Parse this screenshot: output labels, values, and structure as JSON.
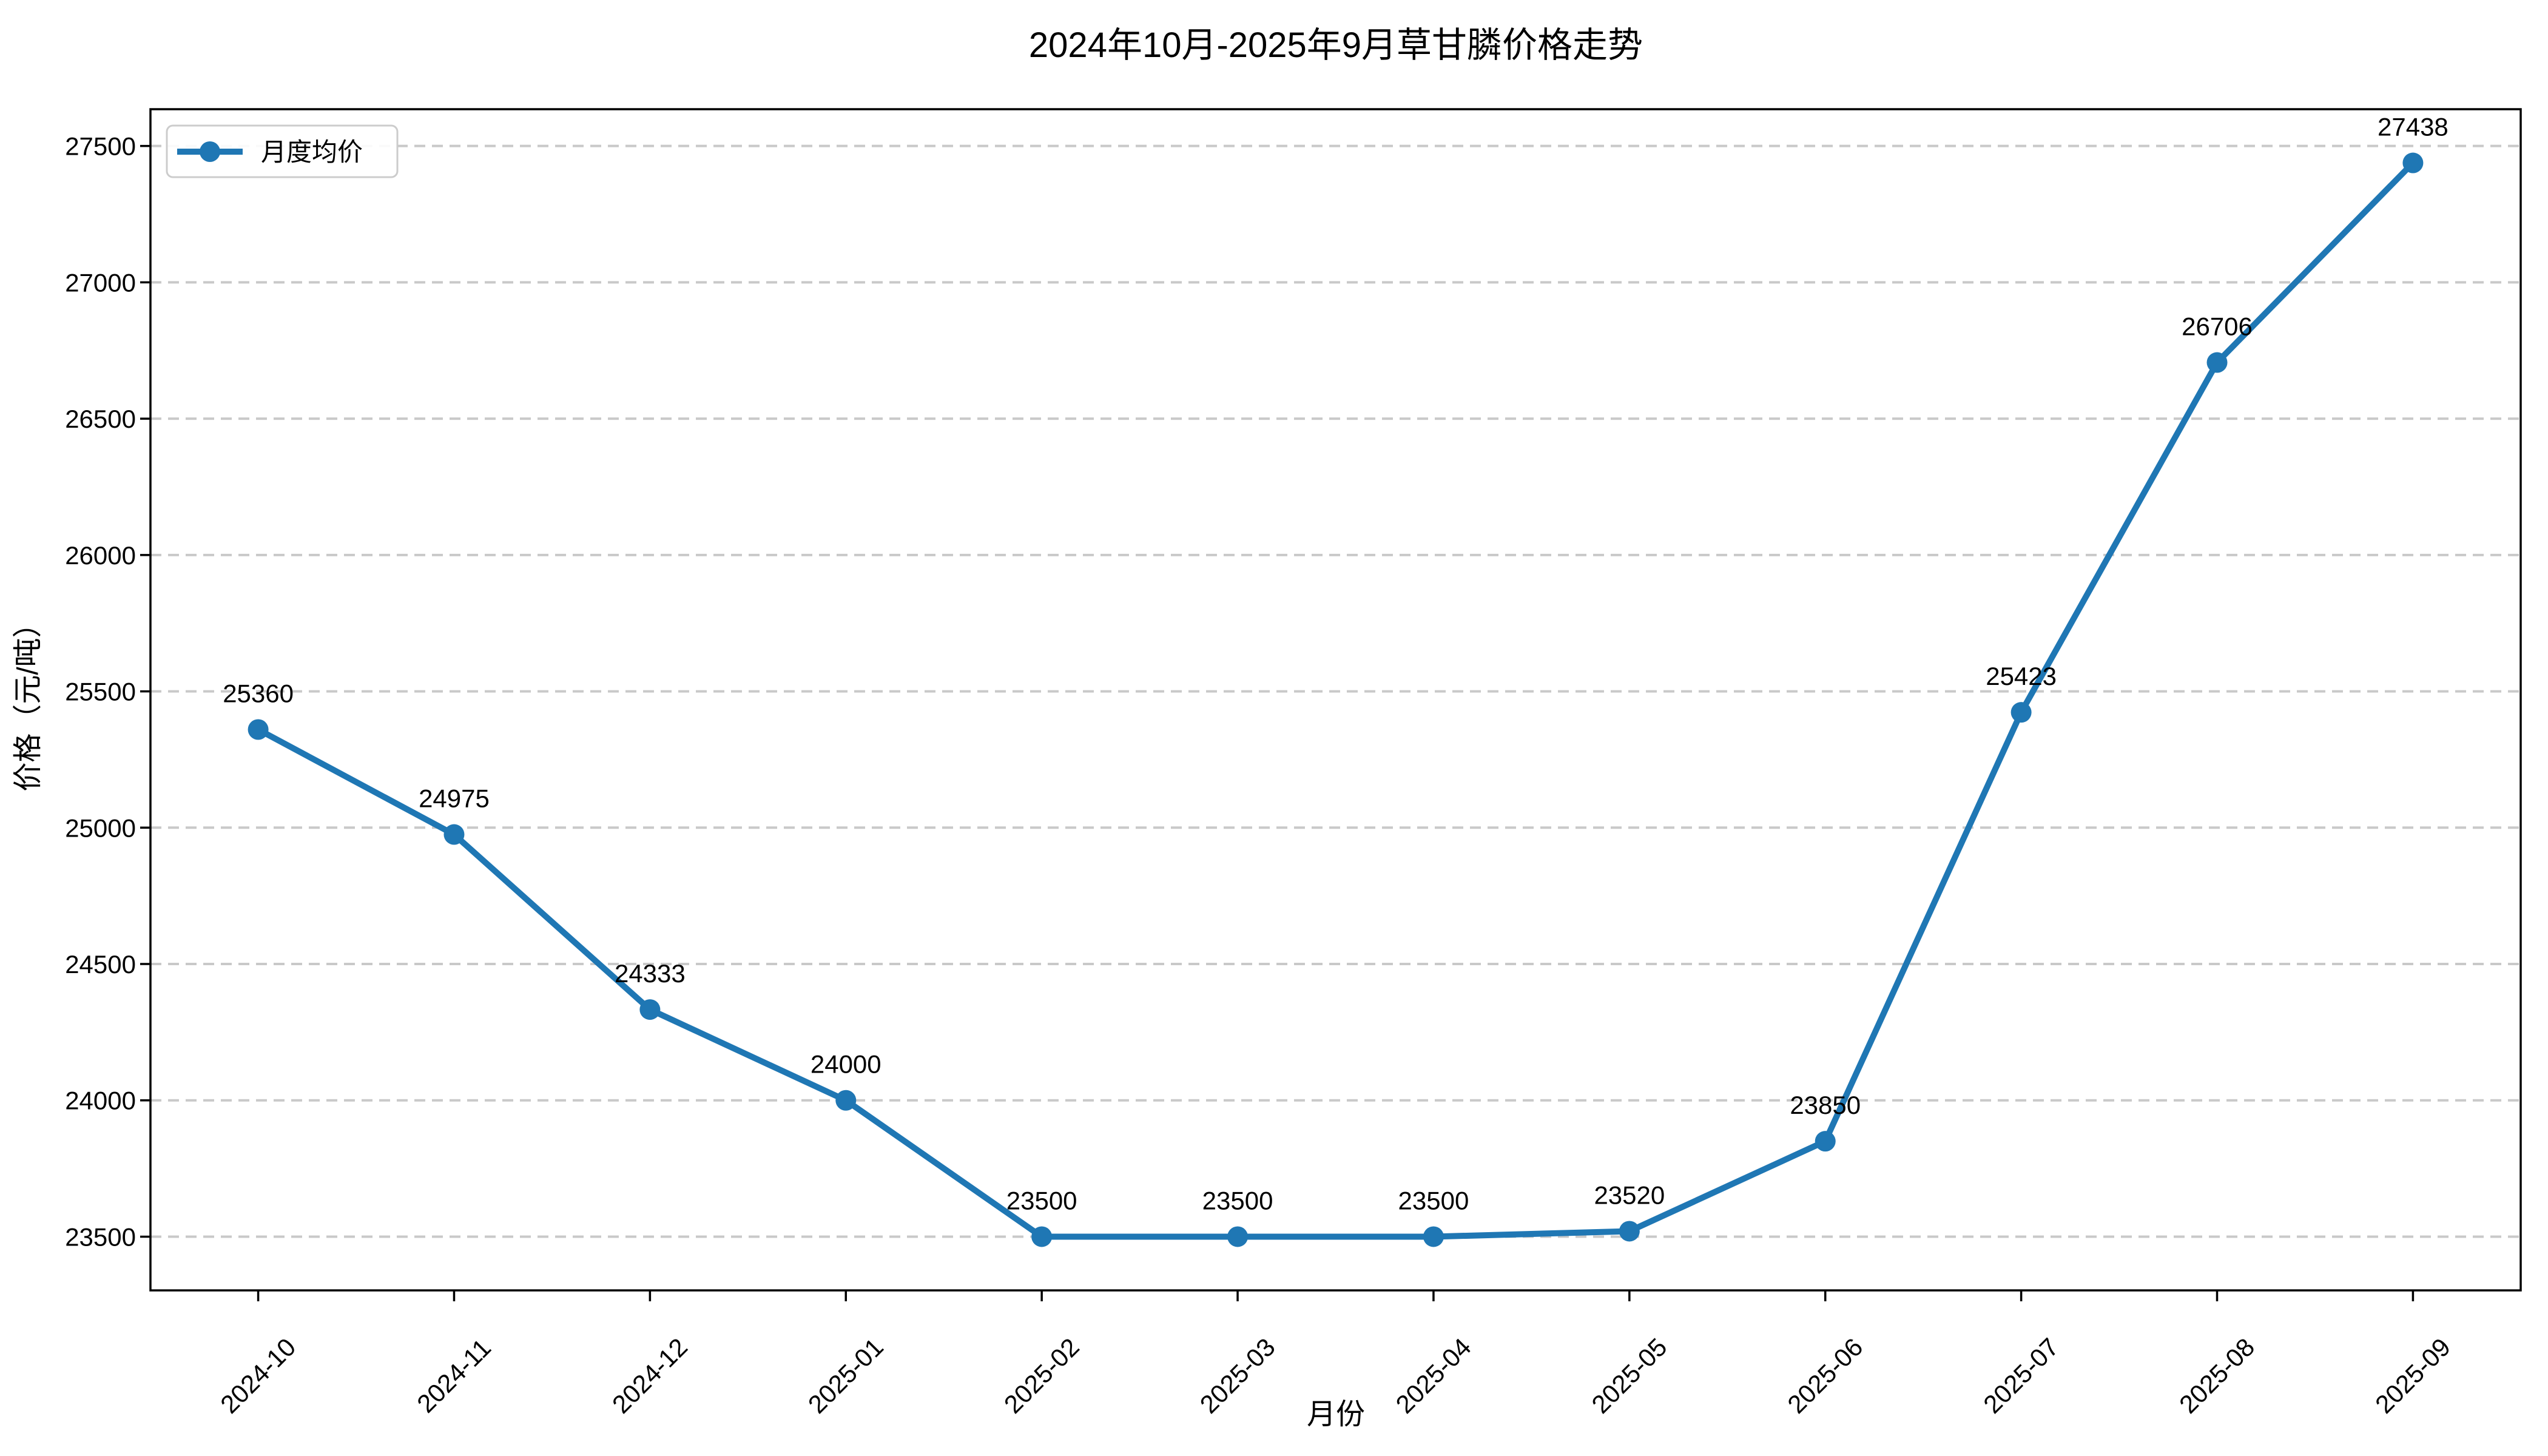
{
  "title": "2024年10月-2025年9月草甘膦价格走势",
  "chart_data": {
    "type": "line",
    "title": "2024年10月-2025年9月草甘膦价格走势",
    "xlabel": "月份",
    "ylabel": "价格（元/吨）",
    "categories": [
      "2024-10",
      "2024-11",
      "2024-12",
      "2025-01",
      "2025-02",
      "2025-03",
      "2025-04",
      "2025-05",
      "2025-06",
      "2025-07",
      "2025-08",
      "2025-09"
    ],
    "series": [
      {
        "name": "月度均价",
        "values": [
          25360,
          24975,
          24333,
          24000,
          23500,
          23500,
          23500,
          23520,
          23850,
          25423,
          26706,
          27438
        ]
      }
    ],
    "data_labels": [
      "25360",
      "24975",
      "24333",
      "24000",
      "23500",
      "23500",
      "23500",
      "23520",
      "23850",
      "25423",
      "26706",
      "27438"
    ],
    "y_ticks": [
      23500,
      24000,
      24500,
      25000,
      25500,
      26000,
      26500,
      27000,
      27500
    ],
    "ylim": [
      23303,
      27635
    ],
    "grid": "horizontal-dashed",
    "legend_position": "upper-left",
    "line_color": "#1f77b4",
    "marker": "circle",
    "grid_color": "#c9c9c9",
    "spine_color": "#000000"
  }
}
